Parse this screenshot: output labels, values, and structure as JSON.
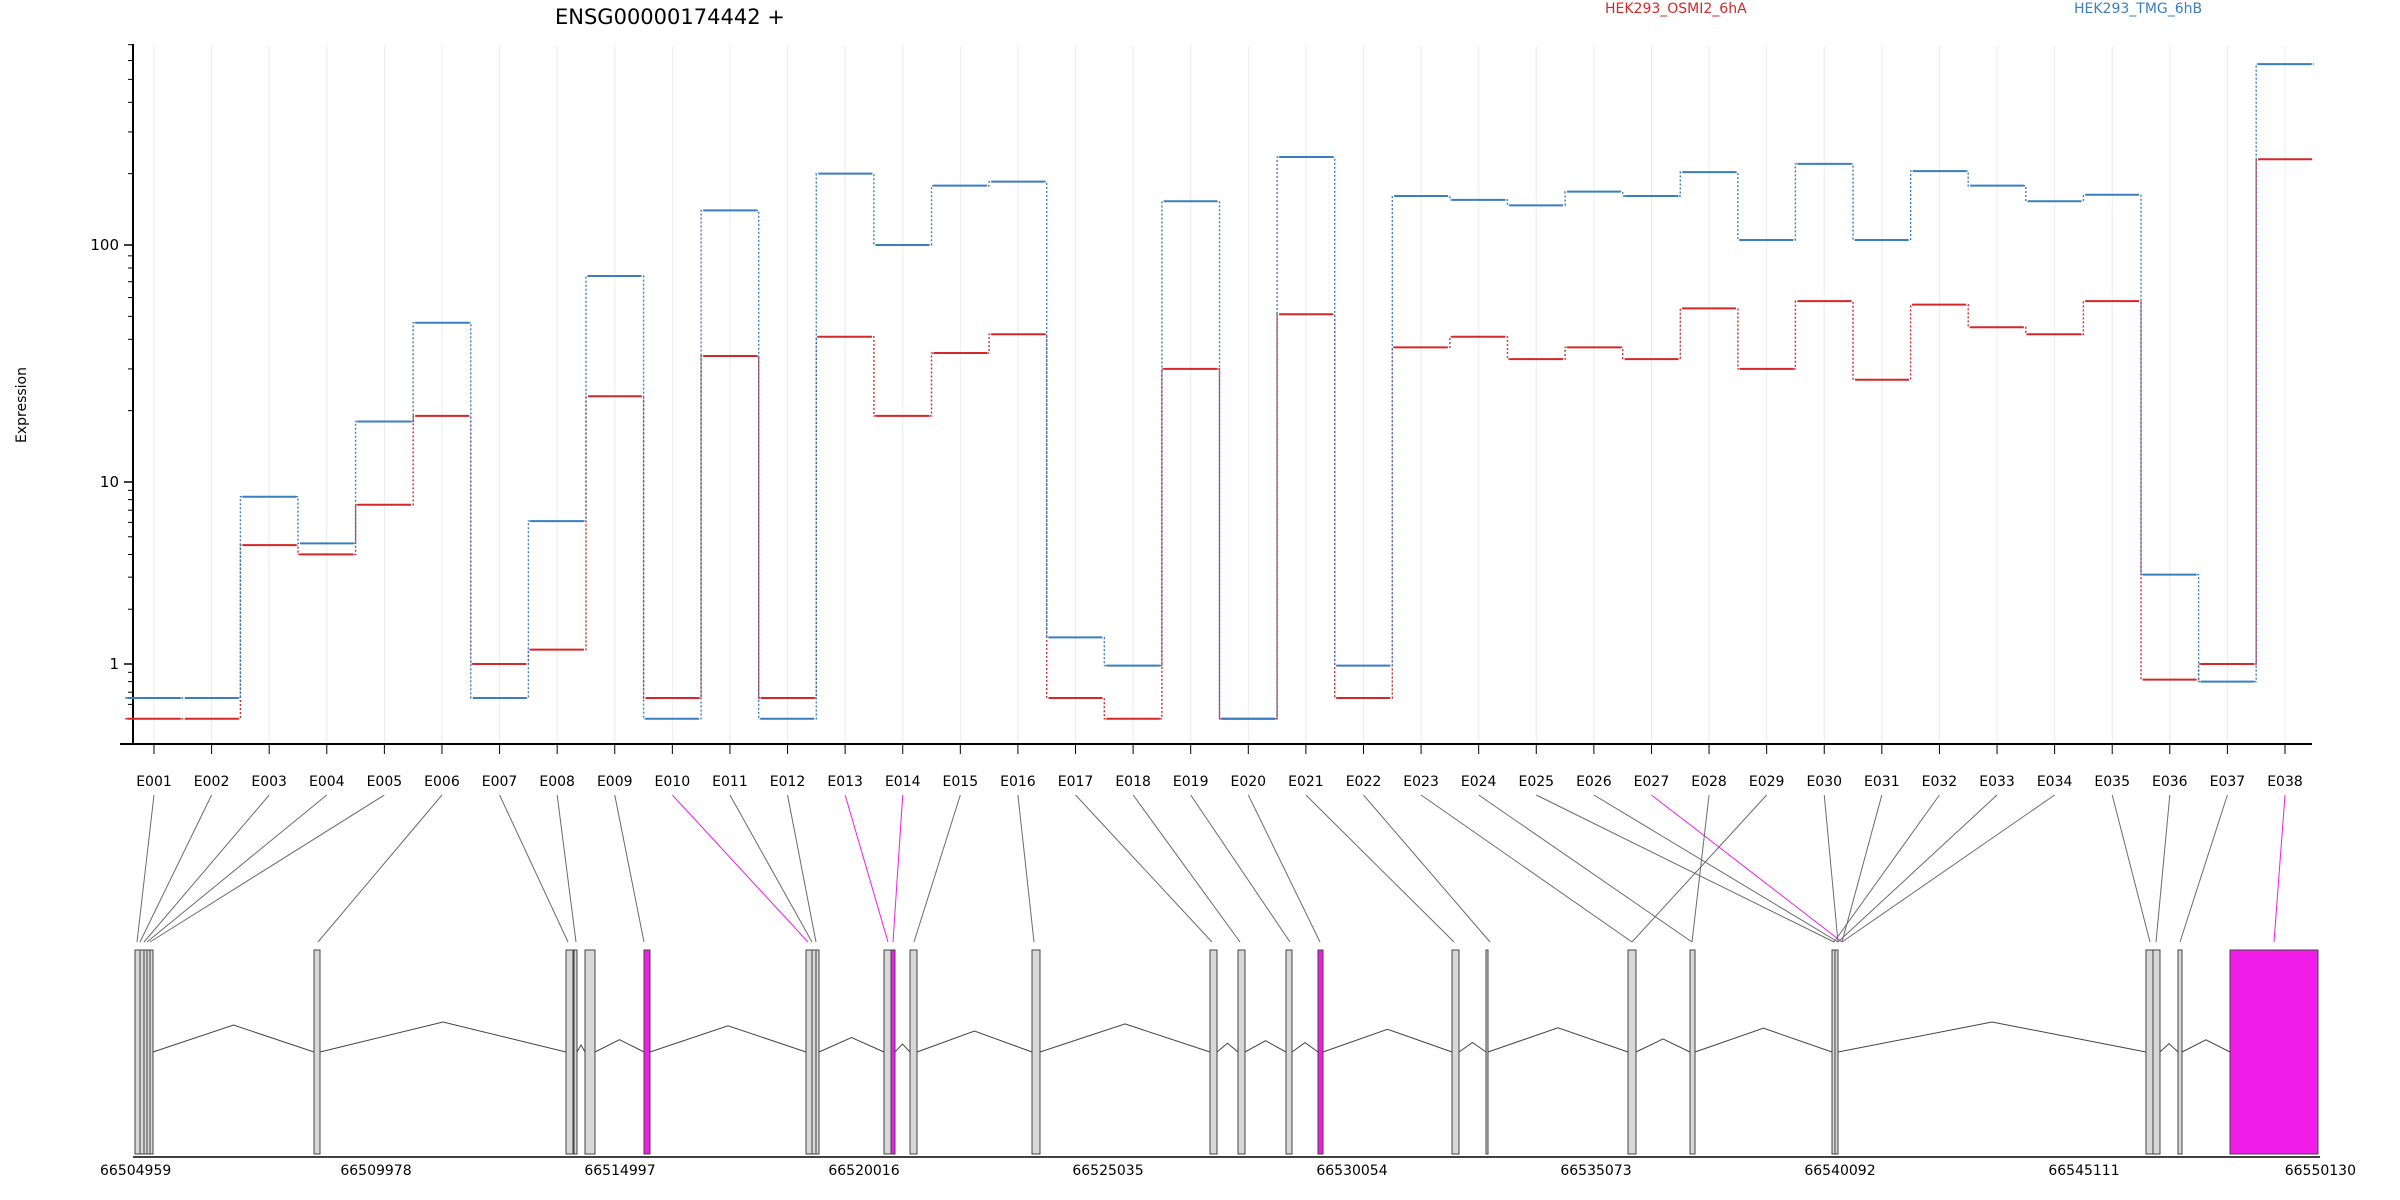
{
  "chart_data": {
    "type": "line",
    "title": "ENSG00000174442 +",
    "ylabel": "Expression",
    "y_scale": "log",
    "ylim": [
      0.4,
      800
    ],
    "y_ticks": [
      {
        "value": 1,
        "label": "1"
      },
      {
        "value": 10,
        "label": "10"
      },
      {
        "value": 100,
        "label": "100"
      }
    ],
    "legend_position": "top-right",
    "categories": [
      "E001",
      "E002",
      "E003",
      "E004",
      "E005",
      "E006",
      "E007",
      "E008",
      "E009",
      "E010",
      "E011",
      "E012",
      "E013",
      "E014",
      "E015",
      "E016",
      "E017",
      "E018",
      "E019",
      "E020",
      "E021",
      "E022",
      "E023",
      "E024",
      "E025",
      "E026",
      "E027",
      "E028",
      "E029",
      "E030",
      "E031",
      "E032",
      "E033",
      "E034",
      "E035",
      "E036",
      "E037",
      "E038"
    ],
    "series": [
      {
        "name": "HEK293_OSMI2_6hA",
        "color": "#d62728",
        "values": [
          0.5,
          0.5,
          4.5,
          4.0,
          7.5,
          19,
          1.0,
          1.2,
          23,
          0.65,
          34,
          0.65,
          41,
          19,
          35,
          42,
          0.65,
          0.5,
          30,
          0.5,
          51,
          0.65,
          37,
          41,
          33,
          37,
          33,
          54,
          30,
          58,
          27,
          56,
          45,
          42,
          58,
          0.82,
          1.0,
          230
        ]
      },
      {
        "name": "HEK293_TMG_6hB",
        "color": "#3a7ebf",
        "values": [
          0.65,
          0.65,
          8.3,
          4.6,
          18,
          47,
          0.65,
          6.1,
          74,
          0.5,
          140,
          0.5,
          200,
          100,
          178,
          185,
          1.4,
          0.98,
          153,
          0.5,
          235,
          0.98,
          161,
          155,
          147,
          168,
          161,
          203,
          105,
          220,
          105,
          205,
          178,
          153,
          163,
          3.1,
          0.8,
          580
        ]
      }
    ],
    "highlighted_exons": [
      "E010",
      "E013",
      "E014",
      "E027",
      "E038"
    ],
    "gene_model": {
      "coordinate_labels": [
        "66504959",
        "66509978",
        "66514997",
        "66520016",
        "66525035",
        "66530054",
        "66535073",
        "66540092",
        "66545111",
        "66550130"
      ]
    }
  }
}
